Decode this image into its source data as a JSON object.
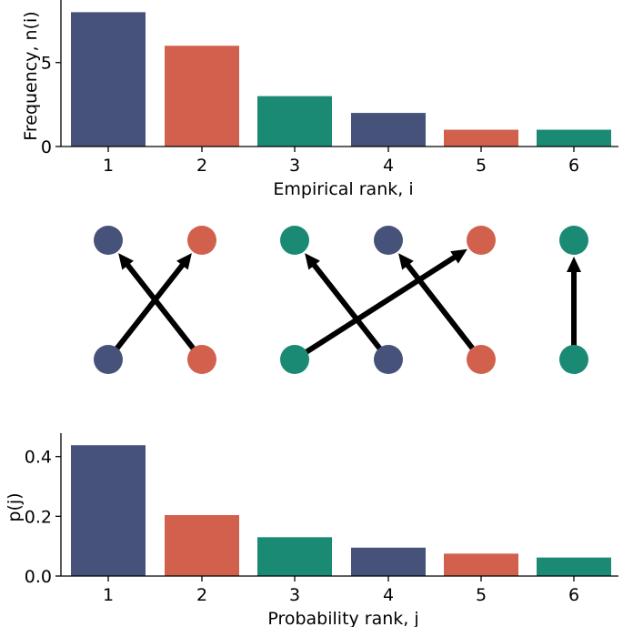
{
  "colors": {
    "blue": "#46527a",
    "red": "#d1614c",
    "green": "#1a8a74"
  },
  "chart_data": [
    {
      "type": "bar",
      "categories": [
        "1",
        "2",
        "3",
        "4",
        "5",
        "6"
      ],
      "values": [
        8,
        6,
        3,
        2,
        1,
        1
      ],
      "bar_colors": [
        "blue",
        "red",
        "green",
        "blue",
        "red",
        "green"
      ],
      "xlabel": "Empirical rank, i",
      "ylabel": "Frequency, n(i)",
      "yticks": [
        "0",
        "5"
      ],
      "ytick_values": [
        0,
        5
      ],
      "ylim": [
        0,
        8.4
      ]
    },
    {
      "type": "bar",
      "categories": [
        "1",
        "2",
        "3",
        "4",
        "5",
        "6"
      ],
      "values": [
        0.438,
        0.204,
        0.13,
        0.095,
        0.075,
        0.062
      ],
      "bar_colors": [
        "blue",
        "red",
        "green",
        "blue",
        "red",
        "green"
      ],
      "xlabel": "Probability rank, j",
      "ylabel": "p(j)",
      "yticks": [
        "0.0",
        "0.2",
        "0.4"
      ],
      "ytick_values": [
        0,
        0.2,
        0.4
      ],
      "ylim": [
        0,
        0.46
      ]
    }
  ],
  "mapping": {
    "nodes": [
      "blue",
      "red",
      "green",
      "blue",
      "red",
      "green"
    ],
    "arrows": [
      {
        "from": 1,
        "to": 2
      },
      {
        "from": 2,
        "to": 1
      },
      {
        "from": 3,
        "to": 5
      },
      {
        "from": 4,
        "to": 3
      },
      {
        "from": 5,
        "to": 4
      },
      {
        "from": 6,
        "to": 6
      }
    ]
  }
}
